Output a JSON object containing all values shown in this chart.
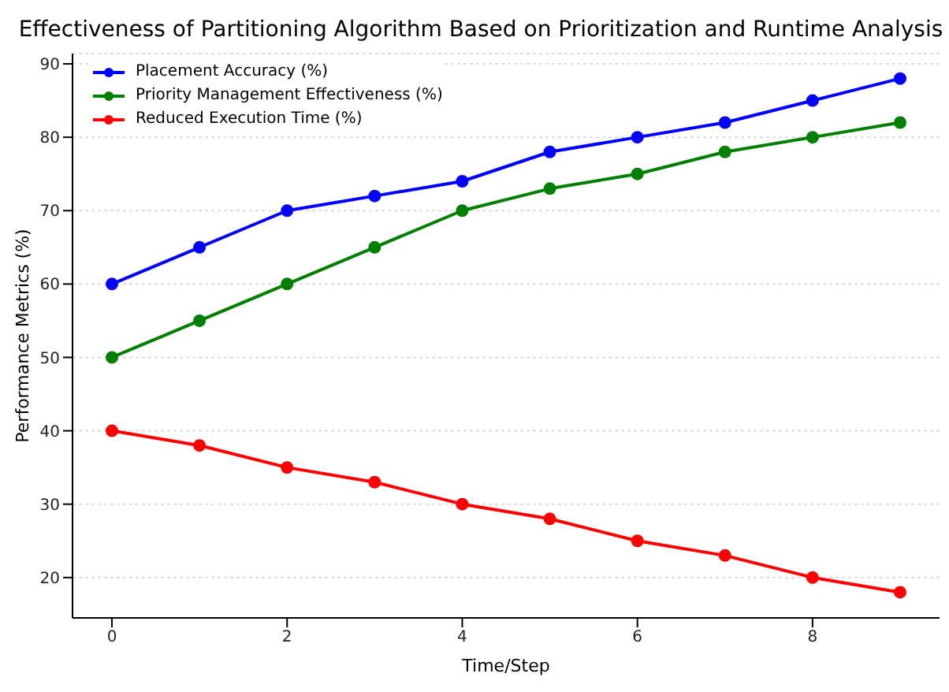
{
  "chart_data": {
    "type": "line",
    "title": "Effectiveness of Partitioning Algorithm Based on Prioritization and Runtime Analysis",
    "xlabel": "Time/Step",
    "ylabel": "Performance Metrics (%)",
    "x": [
      0,
      1,
      2,
      3,
      4,
      5,
      6,
      7,
      8,
      9
    ],
    "series": [
      {
        "name": "Placement Accuracy (%)",
        "color": "#0000ff",
        "values": [
          60,
          65,
          70,
          72,
          74,
          78,
          80,
          82,
          85,
          88
        ]
      },
      {
        "name": "Priority Management Effectiveness (%)",
        "color": "#008000",
        "values": [
          50,
          55,
          60,
          65,
          70,
          73,
          75,
          78,
          80,
          82
        ]
      },
      {
        "name": "Reduced Execution Time (%)",
        "color": "#ff0000",
        "values": [
          40,
          38,
          35,
          33,
          30,
          28,
          25,
          23,
          20,
          18
        ]
      }
    ],
    "xlim": [
      -0.45,
      9.45
    ],
    "xticks": [
      0,
      2,
      4,
      6,
      8
    ],
    "ylim": [
      14.5,
      91.4
    ],
    "yticks": [
      20,
      30,
      40,
      50,
      60,
      70,
      80,
      90
    ],
    "grid": "y",
    "legend": "top left",
    "marker": "circle",
    "line_style": "solid"
  }
}
